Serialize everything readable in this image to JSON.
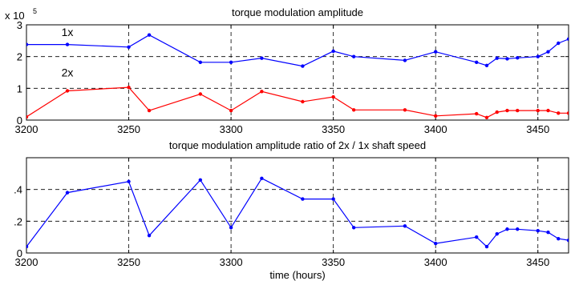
{
  "chart_data": [
    {
      "type": "line",
      "title": "torque modulation amplitude",
      "exponent_label": "x 10",
      "exponent_power": "5",
      "xlim": [
        3200,
        3465
      ],
      "ylim": [
        0,
        3
      ],
      "x_ticks": [
        3200,
        3250,
        3300,
        3350,
        3400,
        3450
      ],
      "y_ticks": [
        0,
        1,
        2,
        3
      ],
      "grid": "dashed, vertical and horizontal",
      "annotations": [
        {
          "text": "1x",
          "x": 3220,
          "y": 2.65
        },
        {
          "text": "2x",
          "x": 3220,
          "y": 1.38
        }
      ],
      "series": [
        {
          "name": "1x",
          "color": "#0000ff",
          "x": [
            3200,
            3220,
            3250,
            3260,
            3285,
            3300,
            3315,
            3335,
            3350,
            3360,
            3385,
            3400,
            3420,
            3425,
            3430,
            3435,
            3440,
            3450,
            3455,
            3460,
            3465
          ],
          "y": [
            2.38,
            2.38,
            2.3,
            2.68,
            1.82,
            1.82,
            1.95,
            1.7,
            2.17,
            2.0,
            1.88,
            2.15,
            1.82,
            1.72,
            1.95,
            1.93,
            1.96,
            2.0,
            2.15,
            2.42,
            2.55
          ]
        },
        {
          "name": "2x",
          "color": "#ff0000",
          "x": [
            3200,
            3220,
            3250,
            3260,
            3285,
            3300,
            3315,
            3335,
            3350,
            3360,
            3385,
            3400,
            3420,
            3425,
            3430,
            3435,
            3440,
            3450,
            3455,
            3460,
            3465
          ],
          "y": [
            0.1,
            0.92,
            1.03,
            0.3,
            0.82,
            0.3,
            0.9,
            0.58,
            0.73,
            0.32,
            0.32,
            0.13,
            0.2,
            0.08,
            0.25,
            0.3,
            0.3,
            0.3,
            0.3,
            0.22,
            0.22
          ]
        }
      ]
    },
    {
      "type": "line",
      "title": "torque modulation amplitude ratio of 2x / 1x shaft speed",
      "xlabel": "time (hours)",
      "xlim": [
        3200,
        3465
      ],
      "ylim": [
        0,
        0.6
      ],
      "x_ticks": [
        3200,
        3250,
        3300,
        3350,
        3400,
        3450
      ],
      "y_ticks": [
        0,
        0.2,
        0.4
      ],
      "grid": "dashed, vertical and horizontal",
      "series": [
        {
          "color": "#0000ff",
          "x": [
            3200,
            3220,
            3250,
            3260,
            3285,
            3300,
            3315,
            3335,
            3350,
            3360,
            3385,
            3400,
            3420,
            3425,
            3430,
            3435,
            3440,
            3450,
            3455,
            3460,
            3465
          ],
          "y": [
            0.04,
            0.38,
            0.45,
            0.11,
            0.46,
            0.16,
            0.47,
            0.34,
            0.34,
            0.16,
            0.17,
            0.06,
            0.1,
            0.04,
            0.12,
            0.15,
            0.15,
            0.14,
            0.13,
            0.09,
            0.08
          ]
        }
      ]
    }
  ]
}
